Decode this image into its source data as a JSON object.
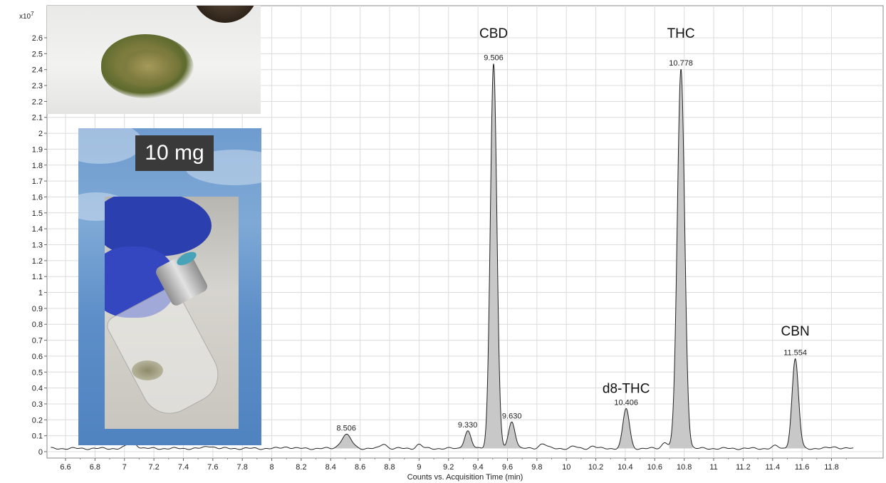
{
  "chart_data": {
    "type": "line",
    "xlabel": "Counts vs. Acquisition Time (min)",
    "ylabel_exponent": "x10",
    "ylabel_exponent_power": "7",
    "xlim": [
      6.5,
      11.95
    ],
    "ylim": [
      0,
      2.7
    ],
    "x_ticks": [
      6.6,
      6.8,
      7,
      7.2,
      7.4,
      7.6,
      7.8,
      8,
      8.2,
      8.4,
      8.6,
      8.8,
      9,
      9.2,
      9.4,
      9.6,
      9.8,
      10,
      10.2,
      10.4,
      10.6,
      10.8,
      11,
      11.2,
      11.4,
      11.6,
      11.8
    ],
    "y_ticks": [
      0,
      0.1,
      0.2,
      0.3,
      0.4,
      0.5,
      0.6,
      0.7,
      0.8,
      0.9,
      1,
      1.1,
      1.2,
      1.3,
      1.4,
      1.5,
      1.6,
      1.7,
      1.8,
      1.9,
      2,
      2.1,
      2.2,
      2.3,
      2.4,
      2.5,
      2.6
    ],
    "grid": true,
    "baseline": 0.02,
    "peaks": [
      {
        "rt": 7.05,
        "height": 0.045,
        "width": 0.03,
        "label": ""
      },
      {
        "rt": 7.58,
        "height": 0.015,
        "width": 0.03,
        "label": ""
      },
      {
        "rt": 8.1,
        "height": 0.01,
        "width": 0.03,
        "label": ""
      },
      {
        "rt": 8.506,
        "height": 0.085,
        "width": 0.035,
        "label": "8.506"
      },
      {
        "rt": 8.76,
        "height": 0.03,
        "width": 0.02,
        "label": ""
      },
      {
        "rt": 9.0,
        "height": 0.025,
        "width": 0.02,
        "label": ""
      },
      {
        "rt": 9.33,
        "height": 0.11,
        "width": 0.022,
        "label": "9.330"
      },
      {
        "rt": 9.506,
        "height": 2.42,
        "width": 0.022,
        "label": "9.506"
      },
      {
        "rt": 9.63,
        "height": 0.17,
        "width": 0.022,
        "label": "9.630"
      },
      {
        "rt": 9.84,
        "height": 0.03,
        "width": 0.025,
        "label": ""
      },
      {
        "rt": 10.05,
        "height": 0.012,
        "width": 0.02,
        "label": ""
      },
      {
        "rt": 10.18,
        "height": 0.015,
        "width": 0.02,
        "label": ""
      },
      {
        "rt": 10.406,
        "height": 0.25,
        "width": 0.022,
        "label": "10.406"
      },
      {
        "rt": 10.67,
        "height": 0.04,
        "width": 0.02,
        "label": ""
      },
      {
        "rt": 10.778,
        "height": 2.38,
        "width": 0.025,
        "label": "10.778"
      },
      {
        "rt": 11.42,
        "height": 0.015,
        "width": 0.02,
        "label": ""
      },
      {
        "rt": 11.554,
        "height": 0.56,
        "width": 0.022,
        "label": "11.554"
      },
      {
        "rt": 11.82,
        "height": 0.01,
        "width": 0.03,
        "label": ""
      }
    ],
    "annotations": [
      {
        "text": "CBD",
        "x": 9.506,
        "y": 2.6
      },
      {
        "text": "THC",
        "x": 10.778,
        "y": 2.6
      },
      {
        "text": "d8-THC",
        "x": 10.406,
        "y": 0.37
      },
      {
        "text": "CBN",
        "x": 11.554,
        "y": 0.73
      }
    ],
    "series_color": "#222222",
    "fill_color": "#c8c8c8"
  },
  "inset": {
    "badge_text": "10 mg"
  }
}
